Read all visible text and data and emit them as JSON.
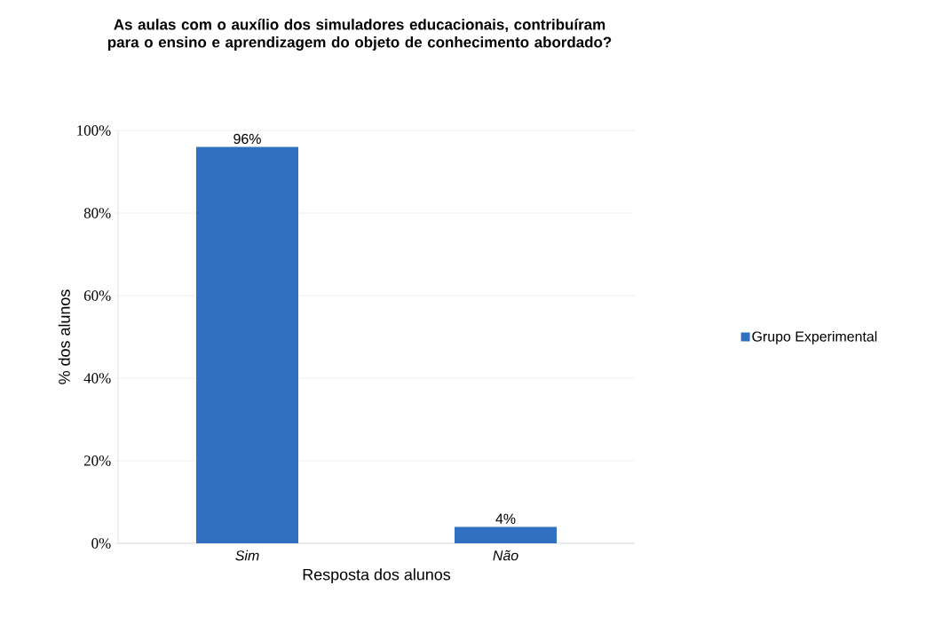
{
  "chart_data": {
    "type": "bar",
    "title": "As aulas com o auxílio dos simuladores educacionais, contribuíram para o ensino e aprendizagem do objeto de conhecimento abordado?",
    "xlabel": "Resposta dos alunos",
    "ylabel": "% dos alunos",
    "categories": [
      "Sim",
      "Não"
    ],
    "series": [
      {
        "name": "Grupo Experimental",
        "color": "#3070c0",
        "values": [
          96,
          4
        ],
        "value_labels": [
          "96%",
          "4%"
        ]
      }
    ],
    "ylim": [
      0,
      100
    ],
    "yticks": [
      {
        "value": 0,
        "label": "0%"
      },
      {
        "value": 20,
        "label": "20%"
      },
      {
        "value": 40,
        "label": "40%"
      },
      {
        "value": 60,
        "label": "60%"
      },
      {
        "value": 80,
        "label": "80%"
      },
      {
        "value": 100,
        "label": "100%"
      }
    ],
    "grid": "y",
    "legend": "right"
  }
}
